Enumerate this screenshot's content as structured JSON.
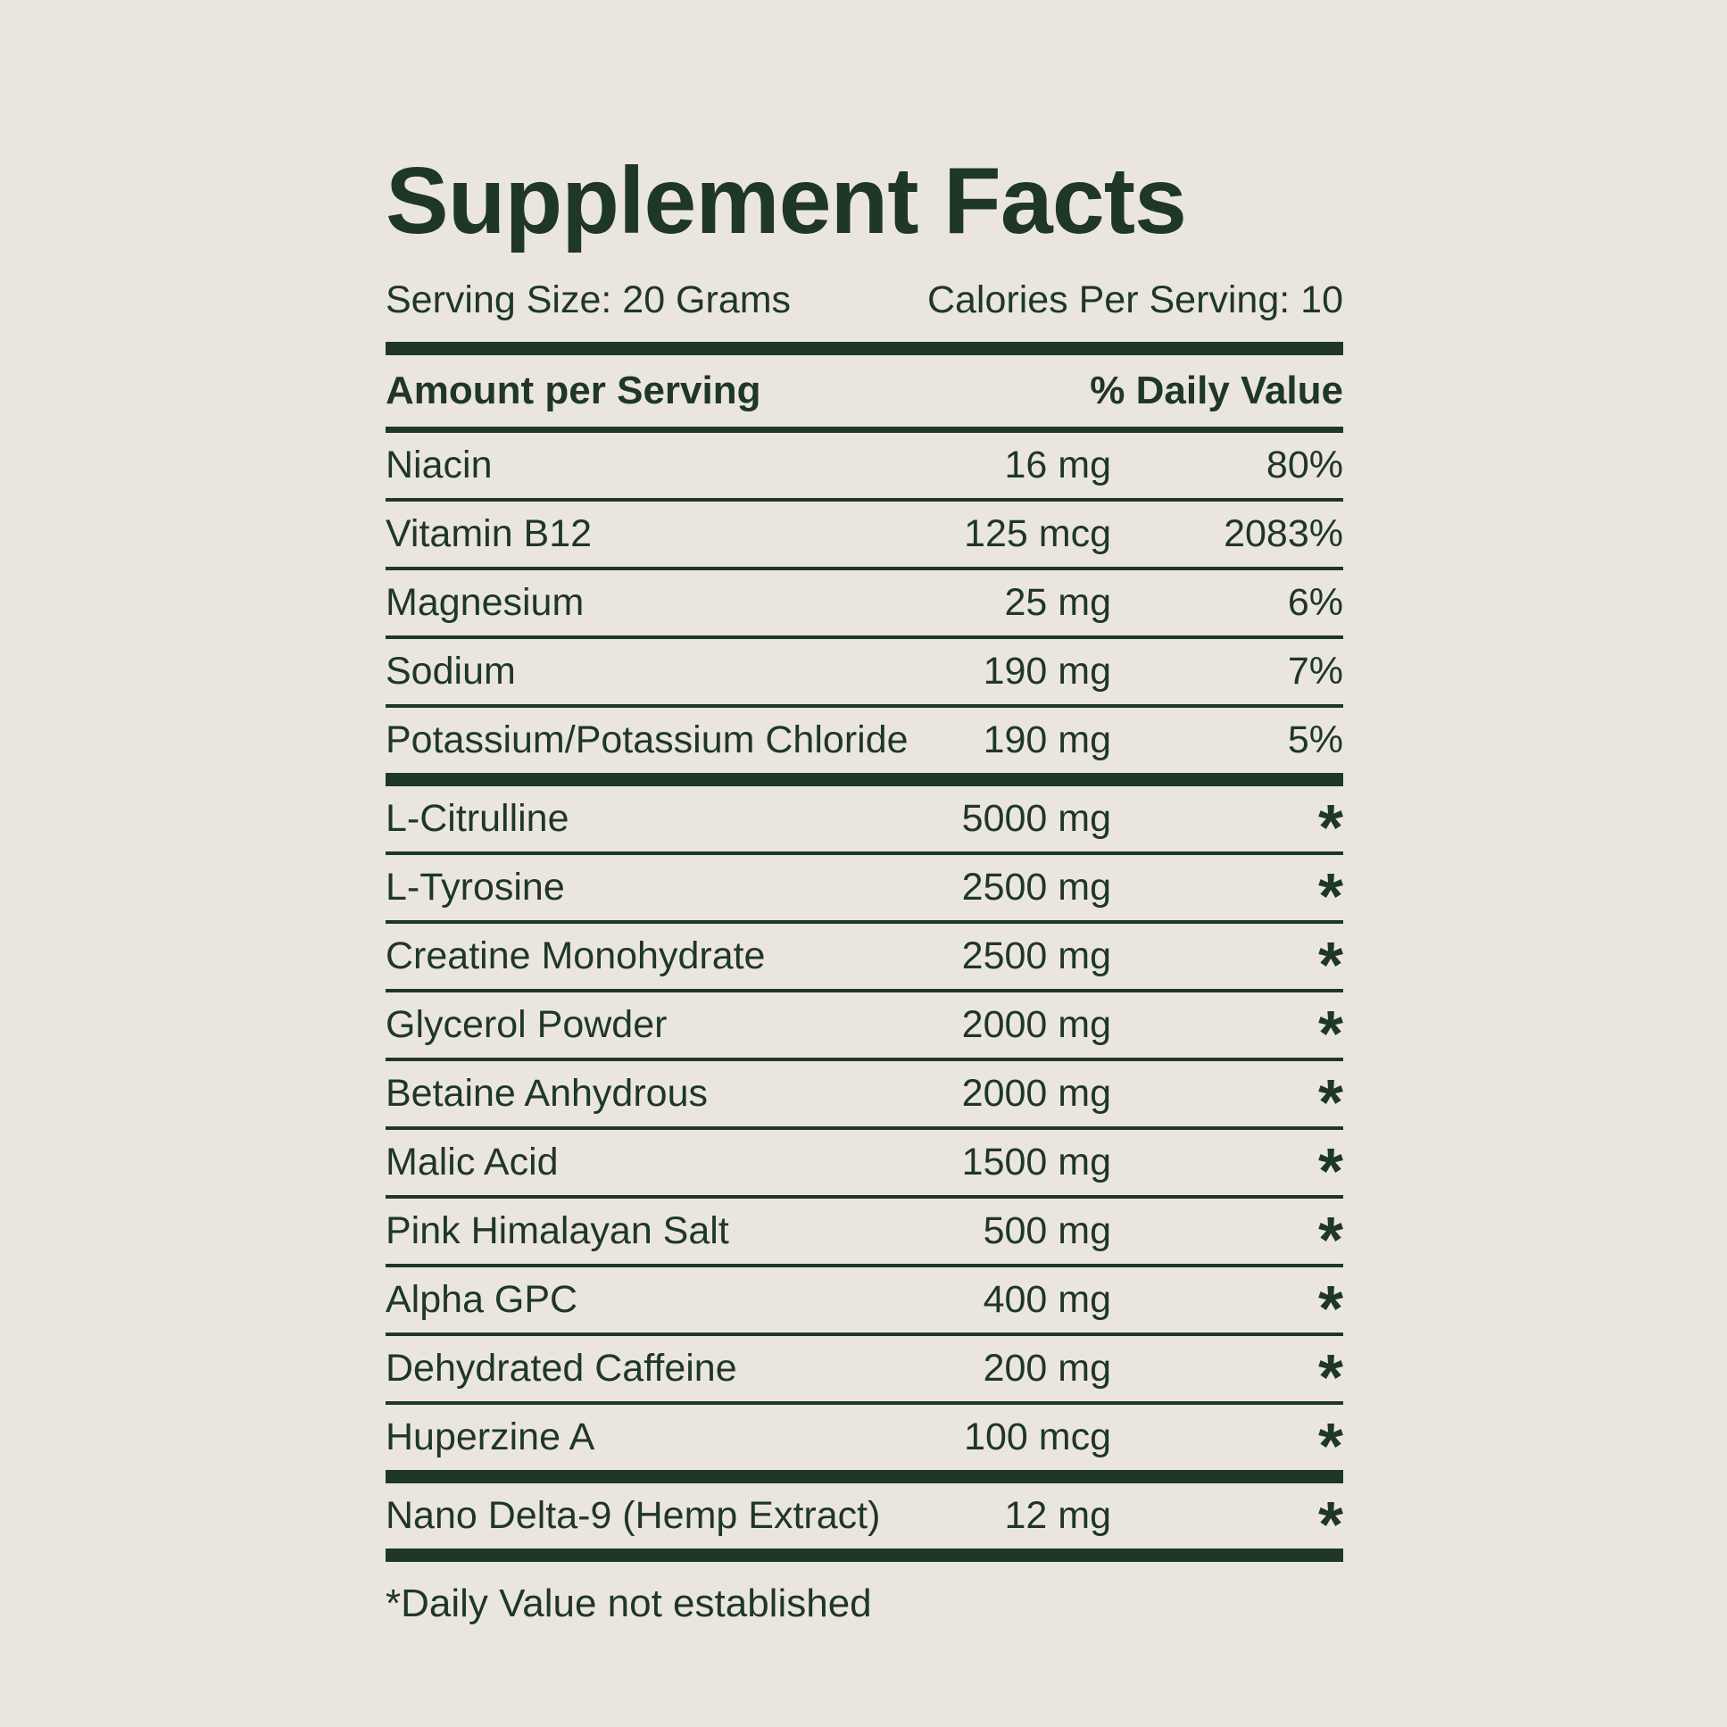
{
  "colors": {
    "background": "#eae6df",
    "ink": "#1f3725"
  },
  "title": "Supplement Facts",
  "serving": {
    "size": "Serving Size: 20 Grams",
    "calories": "Calories Per Serving: 10"
  },
  "table": {
    "header_left": "Amount per Serving",
    "header_right": "% Daily Value",
    "rows": [
      {
        "name": "Niacin",
        "amount": "16 mg",
        "dv": "80%"
      },
      {
        "name": "Vitamin B12",
        "amount": "125 mcg",
        "dv": "2083%"
      },
      {
        "name": "Magnesium",
        "amount": "25 mg",
        "dv": "6%"
      },
      {
        "name": "Sodium",
        "amount": "190 mg",
        "dv": "7%"
      },
      {
        "name": "Potassium/Potassium Chloride",
        "amount": "190 mg",
        "dv": "5%"
      },
      {
        "name": "L-Citrulline",
        "amount": "5000 mg",
        "dv": "*"
      },
      {
        "name": "L-Tyrosine",
        "amount": "2500 mg",
        "dv": "*"
      },
      {
        "name": "Creatine Monohydrate",
        "amount": "2500 mg",
        "dv": "*"
      },
      {
        "name": "Glycerol Powder",
        "amount": "2000 mg",
        "dv": "*"
      },
      {
        "name": "Betaine Anhydrous",
        "amount": "2000 mg",
        "dv": "*"
      },
      {
        "name": "Malic Acid",
        "amount": "1500 mg",
        "dv": "*"
      },
      {
        "name": "Pink Himalayan Salt",
        "amount": "500 mg",
        "dv": "*"
      },
      {
        "name": "Alpha GPC",
        "amount": "400 mg",
        "dv": "*"
      },
      {
        "name": "Dehydrated Caffeine",
        "amount": "200 mg",
        "dv": "*"
      },
      {
        "name": "Huperzine A",
        "amount": "100 mcg",
        "dv": "*"
      },
      {
        "name": "Nano Delta-9 (Hemp Extract)",
        "amount": "12 mg",
        "dv": "*"
      }
    ]
  },
  "footnote": "*Daily Value not established"
}
